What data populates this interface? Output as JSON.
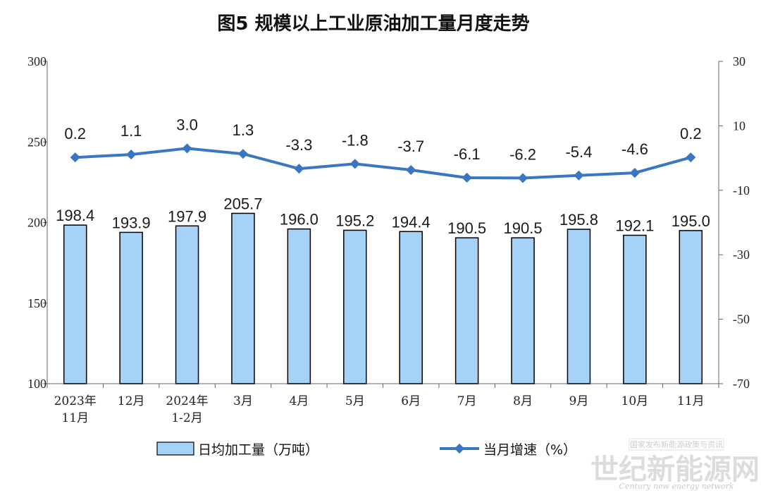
{
  "chart_data": {
    "type": "bar",
    "title": "图5  规模以上工业原油加工量月度走势",
    "categories": [
      [
        "2023年",
        "11月"
      ],
      [
        "12月"
      ],
      [
        "2024年",
        "1-2月"
      ],
      [
        "3月"
      ],
      [
        "4月"
      ],
      [
        "5月"
      ],
      [
        "6月"
      ],
      [
        "7月"
      ],
      [
        "8月"
      ],
      [
        "9月"
      ],
      [
        "10月"
      ],
      [
        "11月"
      ]
    ],
    "series": [
      {
        "name": "日均加工量（万吨）",
        "type": "bar",
        "axis": "left",
        "color": "#a6d2f7",
        "labels": [
          "198.4",
          "193.9",
          "197.9",
          "205.7",
          "196.0",
          "195.2",
          "194.4",
          "190.5",
          "190.5",
          "195.8",
          "192.1",
          "195.0"
        ],
        "values": [
          198.4,
          193.9,
          197.9,
          205.7,
          196.0,
          195.2,
          194.4,
          190.5,
          190.5,
          195.8,
          192.1,
          195.0
        ]
      },
      {
        "name": "当月增速（%）",
        "type": "line",
        "axis": "right",
        "color": "#3b76c2",
        "labels": [
          "0.2",
          "1.1",
          "3.0",
          "1.3",
          "-3.3",
          "-1.8",
          "-3.7",
          "-6.1",
          "-6.2",
          "-5.4",
          "-4.6",
          "0.2"
        ],
        "values": [
          0.2,
          1.1,
          3.0,
          1.3,
          -3.3,
          -1.8,
          -3.7,
          -6.1,
          -6.2,
          -5.4,
          -4.6,
          0.2
        ]
      }
    ],
    "y_left": {
      "min": 100,
      "max": 300,
      "ticks": [
        "100",
        "150",
        "200",
        "250",
        "300"
      ]
    },
    "y_right": {
      "min": -70,
      "max": 30,
      "ticks": [
        "-70",
        "-50",
        "-30",
        "-10",
        "10",
        "30"
      ]
    },
    "legend_position": "bottom",
    "grid": false
  },
  "watermark": {
    "line1": "国家发布新能源政策与资讯",
    "brand": "世纪新能源网",
    "sub": "Century new energy network"
  }
}
